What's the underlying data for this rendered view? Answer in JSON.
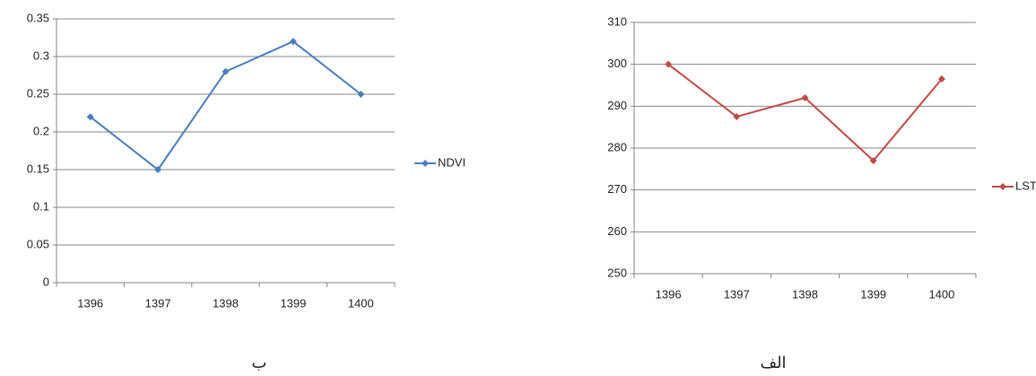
{
  "chart_data": [
    {
      "type": "line",
      "caption": "ب",
      "categories": [
        "1396",
        "1397",
        "1398",
        "1399",
        "1400"
      ],
      "series": [
        {
          "name": "NDVI",
          "color": "#4a7ebb",
          "values": [
            0.22,
            0.15,
            0.28,
            0.32,
            0.25
          ]
        }
      ],
      "ylim": [
        0,
        0.35
      ],
      "yticks": [
        0,
        0.05,
        0.1,
        0.15,
        0.2,
        0.25,
        0.3,
        0.35
      ],
      "grid": true,
      "legend": "right"
    },
    {
      "type": "line",
      "caption": "الف",
      "categories": [
        "1396",
        "1397",
        "1398",
        "1399",
        "1400"
      ],
      "series": [
        {
          "name": "LST",
          "color": "#be4b48",
          "values": [
            300,
            287.5,
            292,
            277,
            296.5
          ]
        }
      ],
      "ylim": [
        250,
        310
      ],
      "yticks": [
        250,
        260,
        270,
        280,
        290,
        300,
        310
      ],
      "grid": true,
      "legend": "right"
    }
  ]
}
